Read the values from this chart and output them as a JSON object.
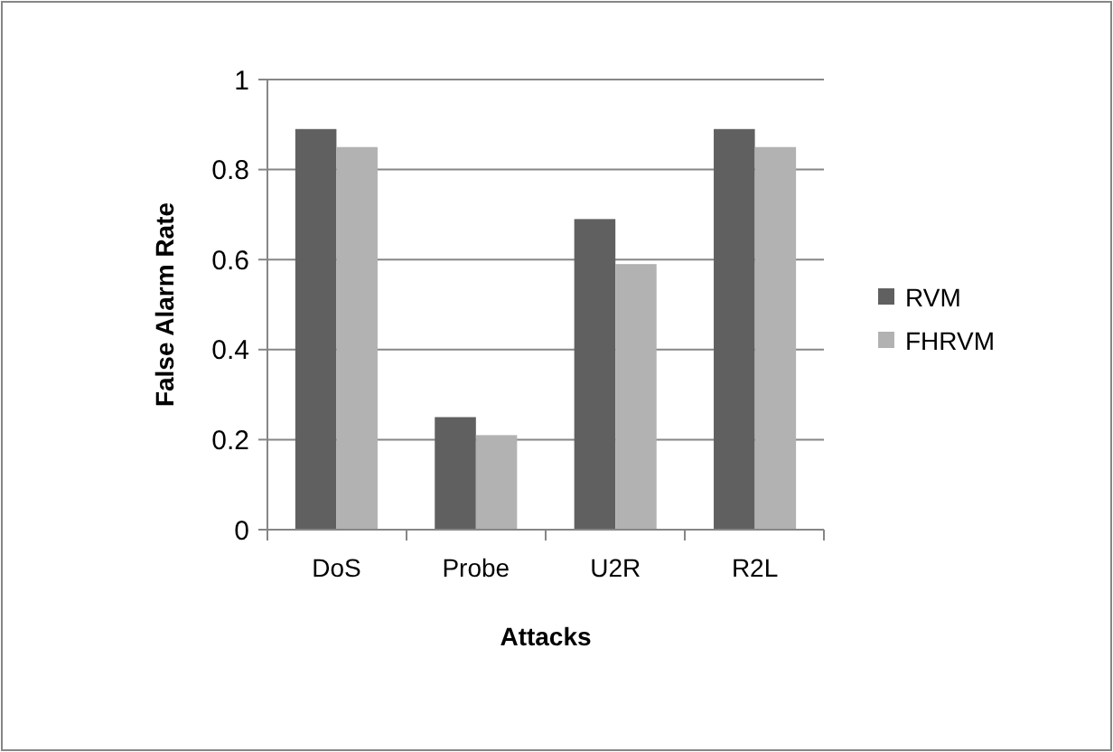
{
  "chart_data": {
    "type": "bar",
    "categories": [
      "DoS",
      "Probe",
      "U2R",
      "R2L"
    ],
    "xlabel": "Attacks",
    "ylabel": "False Alarm Rate",
    "series": [
      {
        "name": "RVM",
        "color": "#606060",
        "values": [
          0.89,
          0.25,
          0.69,
          0.89
        ]
      },
      {
        "name": "FHRVM",
        "color": "#b2b2b2",
        "values": [
          0.85,
          0.21,
          0.59,
          0.85
        ]
      }
    ],
    "ylim": [
      0,
      1
    ],
    "yticks": [
      0,
      0.2,
      0.4,
      0.6,
      0.8,
      1
    ],
    "grid": "y",
    "legend": "right"
  }
}
